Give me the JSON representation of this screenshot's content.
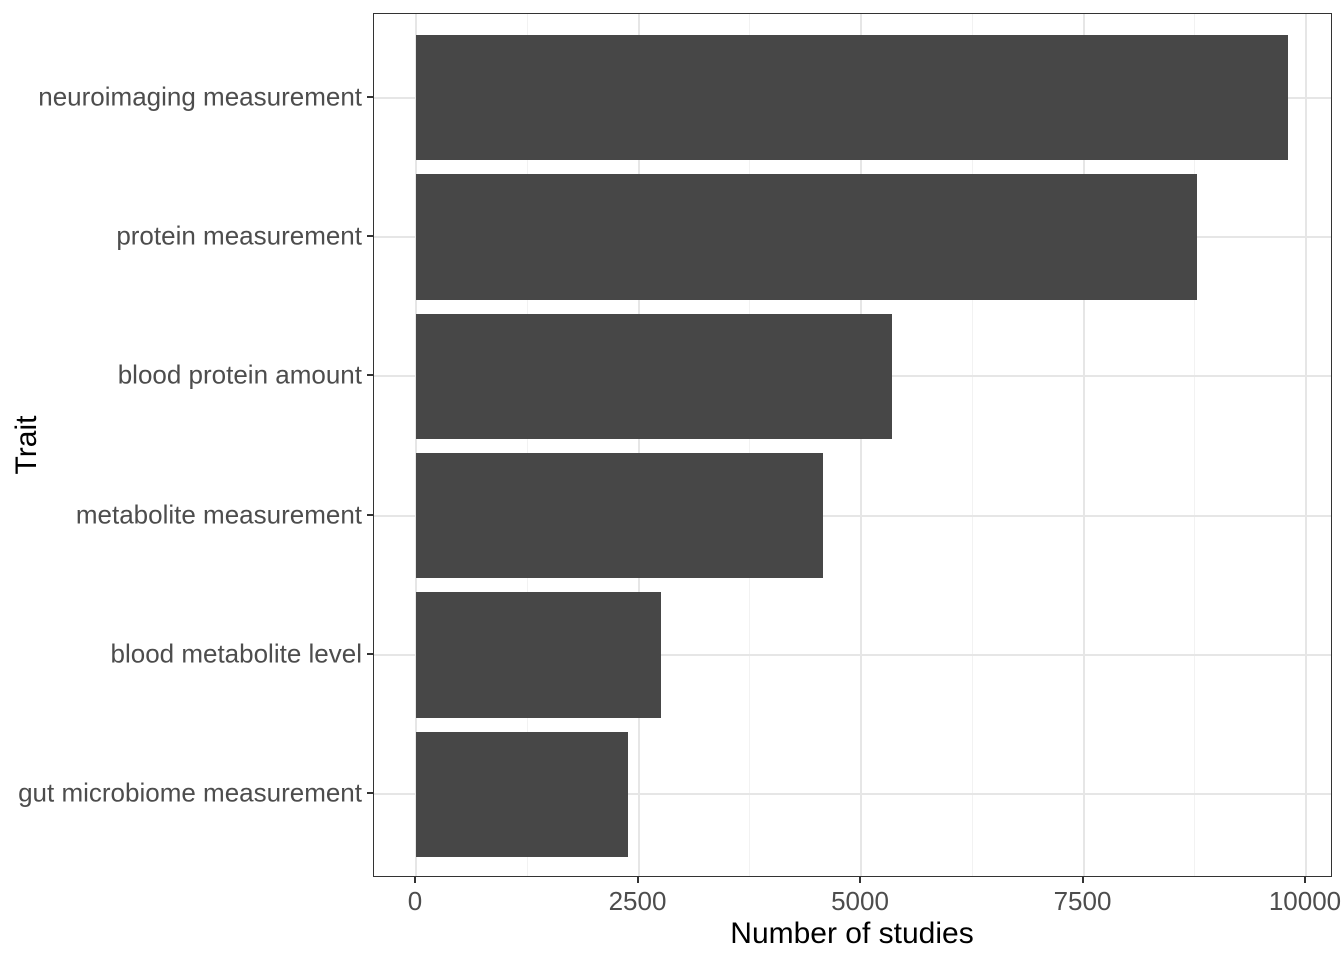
{
  "chart_data": {
    "type": "bar",
    "orientation": "horizontal",
    "title": "",
    "xlabel": "Number of studies",
    "ylabel": "Trait",
    "categories": [
      "neuroimaging measurement",
      "protein measurement",
      "blood protein amount",
      "metabolite measurement",
      "blood metabolite level",
      "gut microbiome measurement"
    ],
    "values": [
      9800,
      8770,
      5350,
      4570,
      2750,
      2380
    ],
    "x_ticks": [
      0,
      2500,
      5000,
      7500,
      10000
    ],
    "x_tick_labels": [
      "0",
      "2500",
      "5000",
      "7500",
      "10000"
    ],
    "x_minor_ticks": [
      1250,
      3750,
      6250,
      8750
    ],
    "xlim": [
      0,
      10000
    ],
    "grid": "on",
    "legend": "none",
    "bar_color": "#474747",
    "panel_border_color": "#333333",
    "major_grid_color": "#e6e6e6",
    "minor_grid_color": "#f2f2f2",
    "tick_label_color": "#4d4d4d",
    "axis_title_color": "#000000",
    "background_color": "#ffffff"
  }
}
